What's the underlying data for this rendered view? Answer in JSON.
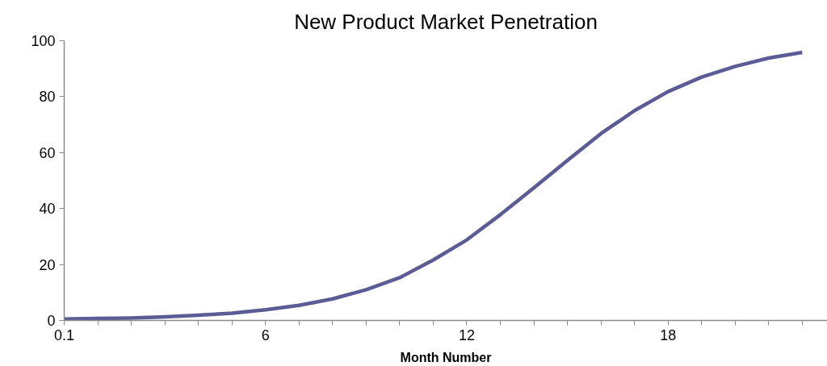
{
  "chart_data": {
    "type": "line",
    "title": "New Product Market Penetration",
    "xlabel": "Month Number",
    "categories": [
      "0.1",
      null,
      null,
      null,
      null,
      null,
      "6",
      null,
      null,
      null,
      null,
      null,
      "12",
      null,
      null,
      null,
      null,
      null,
      "18",
      null,
      null,
      null,
      null
    ],
    "series": [
      {
        "color": "#5b5b96",
        "values": [
          0.5,
          0.7,
          0.9,
          1.3,
          1.9,
          2.6,
          3.8,
          5.4,
          7.7,
          11,
          15.3,
          21.6,
          28.8,
          37.8,
          47.4,
          57.2,
          66.8,
          75,
          81.8,
          87,
          90.8,
          93.8,
          95.8
        ]
      }
    ],
    "ylim": [
      0,
      100
    ],
    "yticks": [
      0,
      20,
      40,
      60,
      80,
      100
    ],
    "grid": false,
    "marker": "none",
    "line_style": "solid"
  }
}
